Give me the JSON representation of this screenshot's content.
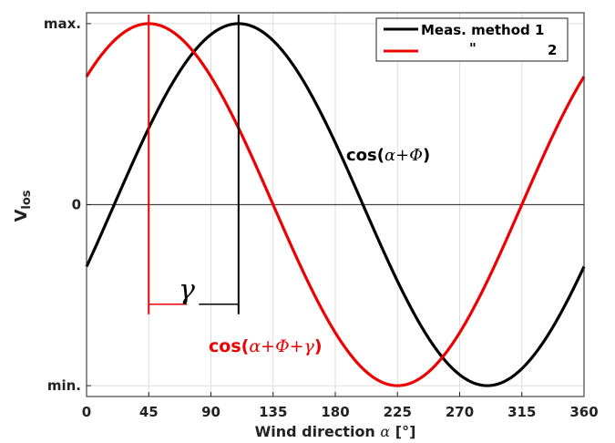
{
  "chart_data": {
    "type": "line",
    "xlabel_prefix": "Wind direction ",
    "xlabel_symbol": "α",
    "xlabel_suffix": " [°]",
    "ylabel_main": "V",
    "ylabel_sub": "los",
    "xlim": [
      0,
      360
    ],
    "ylim": [
      -1.06,
      1.06
    ],
    "x_ticks": [
      0,
      45,
      90,
      135,
      180,
      225,
      270,
      315,
      360
    ],
    "x_tick_labels": [
      "0",
      "45",
      "90",
      "135",
      "180",
      "225",
      "270",
      "315",
      "360"
    ],
    "y_ticks": [
      {
        "value": -1,
        "label": "min."
      },
      {
        "value": 0,
        "label": "0"
      },
      {
        "value": 1,
        "label": "max."
      }
    ],
    "grid": true,
    "legend_position": "top-right",
    "series": [
      {
        "name": "Meas. method 1",
        "color": "#000000",
        "phase_max_at_deg": 110
      },
      {
        "name": "\"",
        "name_suffix": "2",
        "color": "#ee0000",
        "phase_max_at_deg": 45
      }
    ],
    "markers": {
      "red_vertical_x": 45,
      "black_vertical_x": 110,
      "gamma_bracket_y": -0.55,
      "gamma_symbol": "γ"
    },
    "annotations": [
      {
        "id": "black-formula",
        "prefix": "cos(",
        "math": "α+Φ",
        "suffix": ")",
        "color": "#000000"
      },
      {
        "id": "red-formula",
        "prefix": "cos(",
        "math": "α+Φ+γ",
        "suffix": ")",
        "color": "#ee0000"
      }
    ]
  }
}
